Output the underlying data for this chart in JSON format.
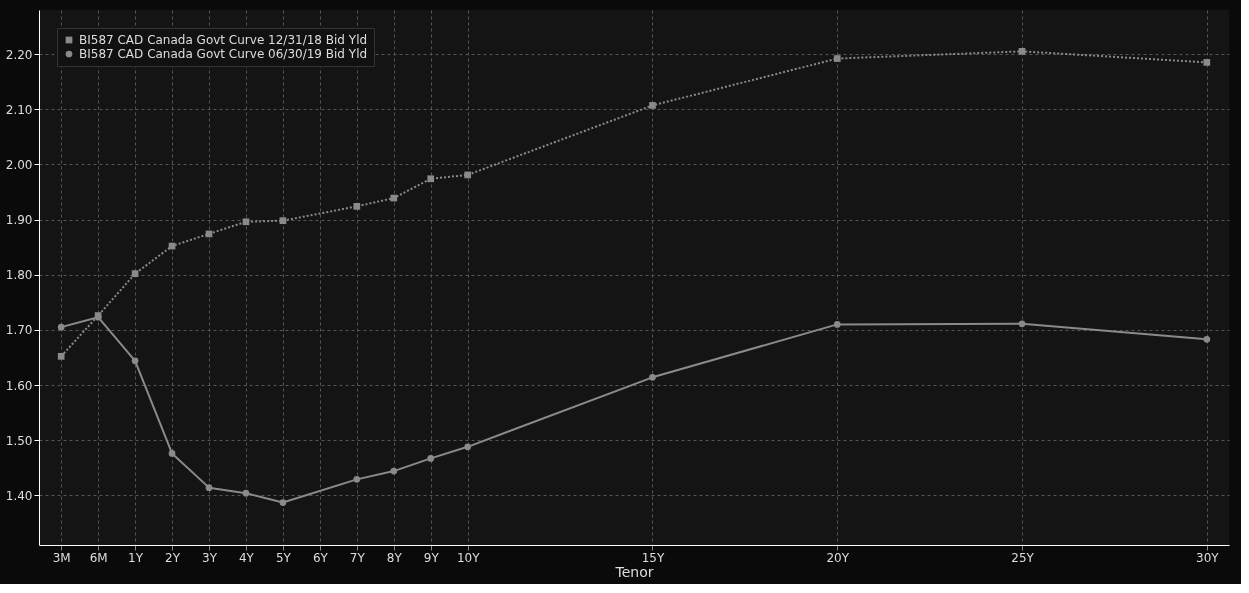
{
  "chart_data": {
    "type": "line",
    "xlabel": "Tenor",
    "categories": [
      "3M",
      "6M",
      "1Y",
      "2Y",
      "3Y",
      "4Y",
      "5Y",
      "6Y",
      "7Y",
      "8Y",
      "9Y",
      "10Y",
      null,
      null,
      null,
      null,
      "15Y",
      null,
      null,
      null,
      null,
      "20Y",
      null,
      null,
      null,
      null,
      "25Y",
      null,
      null,
      null,
      null,
      "30Y"
    ],
    "series": [
      {
        "name": "BI587 CAD Canada Govt Curve 12/31/18 Bid Yld",
        "color": "#8a8a8a",
        "marker": "square",
        "line_style": "dotted",
        "values": [
          1.652,
          1.726,
          1.802,
          1.852,
          1.874,
          1.896,
          1.898,
          null,
          1.924,
          1.939,
          1.974,
          1.981,
          null,
          null,
          null,
          null,
          2.107,
          null,
          null,
          null,
          null,
          2.192,
          null,
          null,
          null,
          null,
          2.205,
          null,
          null,
          null,
          null,
          2.185
        ]
      },
      {
        "name": "BI587 CAD Canada Govt Curve 06/30/19 Bid Yld",
        "color": "#8a8a8a",
        "marker": "circle",
        "line_style": "solid",
        "values": [
          1.705,
          1.723,
          1.644,
          1.476,
          1.414,
          1.404,
          1.387,
          null,
          1.429,
          1.444,
          1.467,
          1.488,
          null,
          null,
          null,
          null,
          1.614,
          null,
          null,
          null,
          null,
          1.71,
          null,
          null,
          null,
          null,
          1.711,
          null,
          null,
          null,
          null,
          1.683
        ]
      }
    ],
    "ylim": [
      1.31,
      2.28
    ],
    "yticks": [
      {
        "value": 1.4,
        "label": "1.40"
      },
      {
        "value": 1.5,
        "label": "1.50"
      },
      {
        "value": 1.6,
        "label": "1.60"
      },
      {
        "value": 1.7,
        "label": "1.70"
      },
      {
        "value": 1.8,
        "label": "1.80"
      },
      {
        "value": 1.9,
        "label": "1.90"
      },
      {
        "value": 2.0,
        "label": "2.00"
      },
      {
        "value": 2.1,
        "label": "2.10"
      },
      {
        "value": 2.2,
        "label": "2.20"
      }
    ],
    "grid": true,
    "legend": "top left"
  }
}
